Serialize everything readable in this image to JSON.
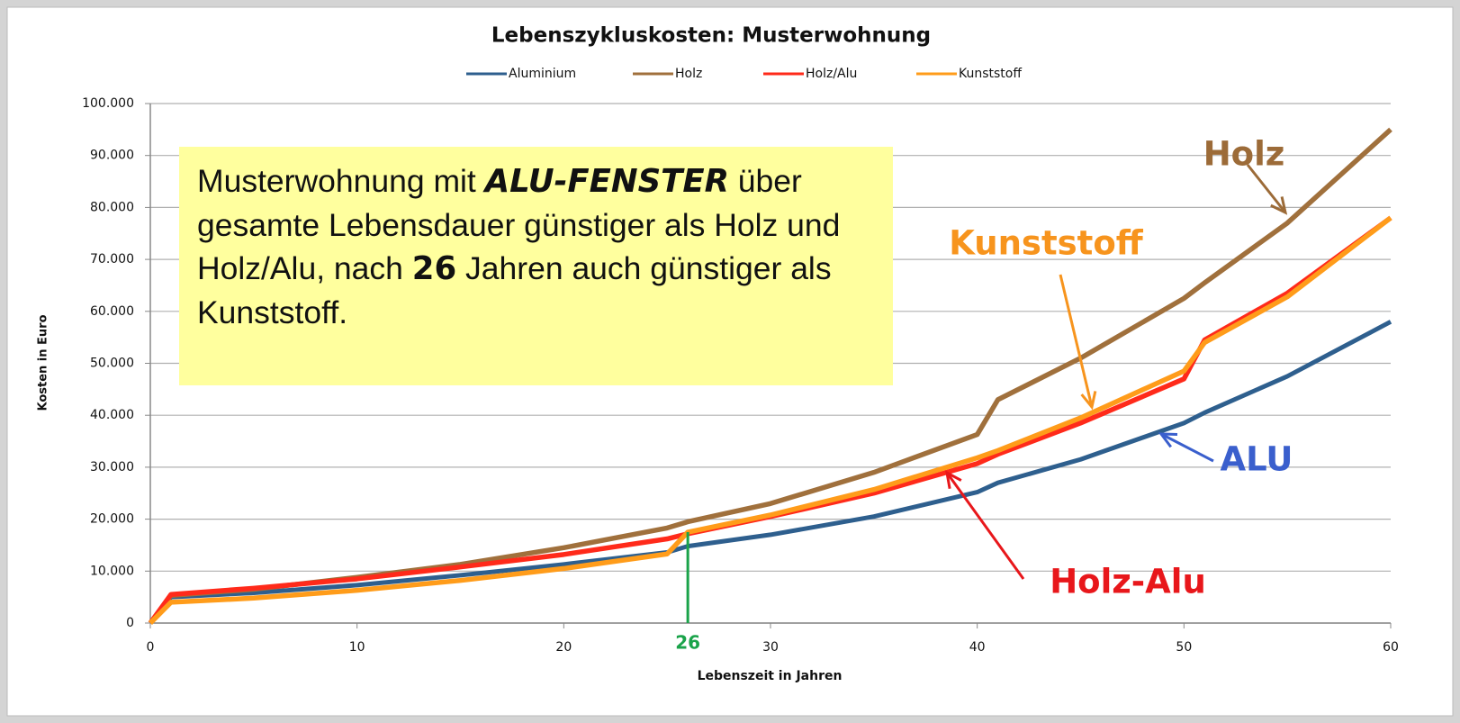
{
  "chart_data": {
    "type": "line",
    "title": "Lebenszykluskosten: Musterwohnung",
    "x_label": "Lebenszeit in Jahren",
    "y_label": "Kosten in Euro",
    "x": [
      0,
      1,
      5,
      10,
      15,
      20,
      25,
      26,
      30,
      35,
      40,
      41,
      45,
      50,
      51,
      55,
      60
    ],
    "series": [
      {
        "name": "Aluminium",
        "color": "#2e5f8e",
        "values": [
          0,
          5000,
          5800,
          7300,
          9200,
          11300,
          13600,
          14800,
          17000,
          20500,
          25200,
          27000,
          31500,
          38500,
          40500,
          47500,
          58000
        ]
      },
      {
        "name": "Holz",
        "color": "#a0703c",
        "values": [
          0,
          5300,
          6500,
          8800,
          11300,
          14500,
          18300,
          19500,
          23000,
          29000,
          36300,
          43000,
          51000,
          62500,
          65500,
          77000,
          95000
        ]
      },
      {
        "name": "Holz/Alu",
        "color": "#ff2a1a",
        "values": [
          0,
          5500,
          6700,
          8500,
          10800,
          13200,
          16200,
          17200,
          20500,
          25000,
          30700,
          32500,
          38500,
          47000,
          54500,
          63500,
          78000
        ]
      },
      {
        "name": "Kunststoff",
        "color": "#ff9c1a",
        "values": [
          0,
          4000,
          4800,
          6300,
          8200,
          10500,
          13300,
          17500,
          20800,
          25700,
          31800,
          33200,
          39500,
          48500,
          54000,
          62800,
          78000
        ]
      }
    ],
    "xlim": [
      0,
      60
    ],
    "xticks": [
      0,
      10,
      20,
      30,
      40,
      50,
      60
    ],
    "ylim": [
      0,
      100000
    ],
    "yticks": [
      0,
      {
        "value": 10000,
        "label": "10.000"
      },
      {
        "value": 20000,
        "label": "20.000"
      },
      {
        "value": 30000,
        "label": "30.000"
      },
      {
        "value": 40000,
        "label": "40.000"
      },
      {
        "value": 50000,
        "label": "50.000"
      },
      {
        "value": 60000,
        "label": "60.000"
      },
      {
        "value": 70000,
        "label": "70.000"
      },
      {
        "value": 80000,
        "label": "80.000"
      },
      {
        "value": 90000,
        "label": "90.000"
      },
      {
        "value": 100000,
        "label": "100.000"
      }
    ],
    "grid": true,
    "legend": "top",
    "callout": [
      "Musterwohnung mit ",
      "ALU-FENSTER",
      " über gesamte Lebensdauer günstiger als Holz und Holz/Alu, nach ",
      "26",
      " Jahren auch günstiger als Kunststoff."
    ],
    "marker": {
      "text": "26",
      "x": 26,
      "color": "#1aa34a"
    },
    "annotations": [
      {
        "text": "Holz",
        "color": "#9c6b38"
      },
      {
        "text": "Kunststoff",
        "color": "#f7941d"
      },
      {
        "text": "ALU",
        "color": "#3a5fcd"
      },
      {
        "text": "Holz-Alu",
        "color": "#e8171b"
      }
    ]
  }
}
